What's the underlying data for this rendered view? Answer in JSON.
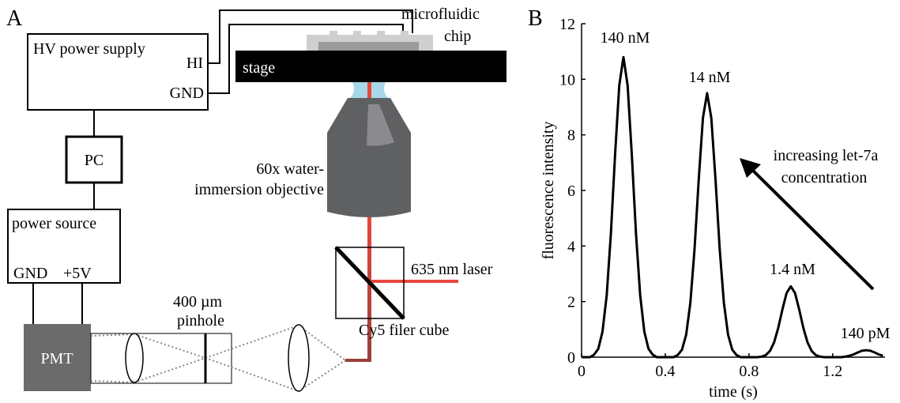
{
  "diagram": {
    "panel_label": "A",
    "hv_supply": "HV power supply",
    "hi": "HI",
    "gnd_hv": "GND",
    "chip_lines": [
      "microfluidic",
      "chip"
    ],
    "stage": "stage",
    "objective_lines": [
      "60x water-",
      "immersion objective"
    ],
    "pc": "PC",
    "power_source": "power source",
    "gnd_ps": "GND",
    "plus5v": "+5V",
    "pinhole_lines": [
      "400 µm",
      "pinhole"
    ],
    "pmt": "PMT",
    "laser": "635 nm laser",
    "cube": "Cy5 filer cube"
  },
  "chart_data": {
    "type": "line",
    "panel_label": "B",
    "x_label": "time (s)",
    "y_label": "fluorescence intensity",
    "color": "#000000",
    "x": [
      0,
      0.02,
      0.04,
      0.06,
      0.08,
      0.1,
      0.12,
      0.14,
      0.16,
      0.18,
      0.2,
      0.22,
      0.24,
      0.26,
      0.28,
      0.3,
      0.32,
      0.34,
      0.36,
      0.38,
      0.4,
      0.42,
      0.44,
      0.46,
      0.48,
      0.5,
      0.52,
      0.54,
      0.56,
      0.58,
      0.6,
      0.62,
      0.64,
      0.66,
      0.68,
      0.7,
      0.72,
      0.74,
      0.76,
      0.78,
      0.8,
      0.82,
      0.84,
      0.86,
      0.88,
      0.9,
      0.92,
      0.94,
      0.96,
      0.98,
      1.0,
      1.02,
      1.04,
      1.06,
      1.08,
      1.1,
      1.12,
      1.14,
      1.16,
      1.18,
      1.2,
      1.22,
      1.24,
      1.26,
      1.28,
      1.3,
      1.32,
      1.34,
      1.36,
      1.38,
      1.4,
      1.42,
      1.44
    ],
    "values": [
      0,
      0,
      0,
      0.09,
      0.3,
      0.92,
      2.22,
      4.44,
      7.28,
      9.78,
      10.8,
      9.78,
      7.28,
      4.44,
      2.22,
      0.92,
      0.3,
      0.09,
      0,
      0,
      0,
      0,
      0,
      0.08,
      0.27,
      0.81,
      1.96,
      3.9,
      6.4,
      8.61,
      9.5,
      8.61,
      6.4,
      3.9,
      1.96,
      0.81,
      0.27,
      0.08,
      0,
      0,
      0,
      0,
      0,
      0.02,
      0.07,
      0.22,
      0.53,
      1.05,
      1.72,
      2.31,
      2.55,
      2.31,
      1.72,
      1.05,
      0.53,
      0.22,
      0.07,
      0.02,
      0,
      0,
      0,
      0,
      0,
      0.02,
      0.05,
      0.1,
      0.17,
      0.23,
      0.25,
      0.23,
      0.17,
      0.1,
      0.05
    ],
    "xlim": [
      0,
      1.45
    ],
    "ylim": [
      0,
      12
    ],
    "xticks": [
      0,
      0.4,
      0.8,
      1.2
    ],
    "yticks": [
      0,
      2,
      4,
      6,
      8,
      10,
      12
    ],
    "annotations": [
      "140 nM",
      "14 nM",
      "1.4 nM",
      "140 pM",
      "increasing let-7a",
      "concentration"
    ]
  }
}
